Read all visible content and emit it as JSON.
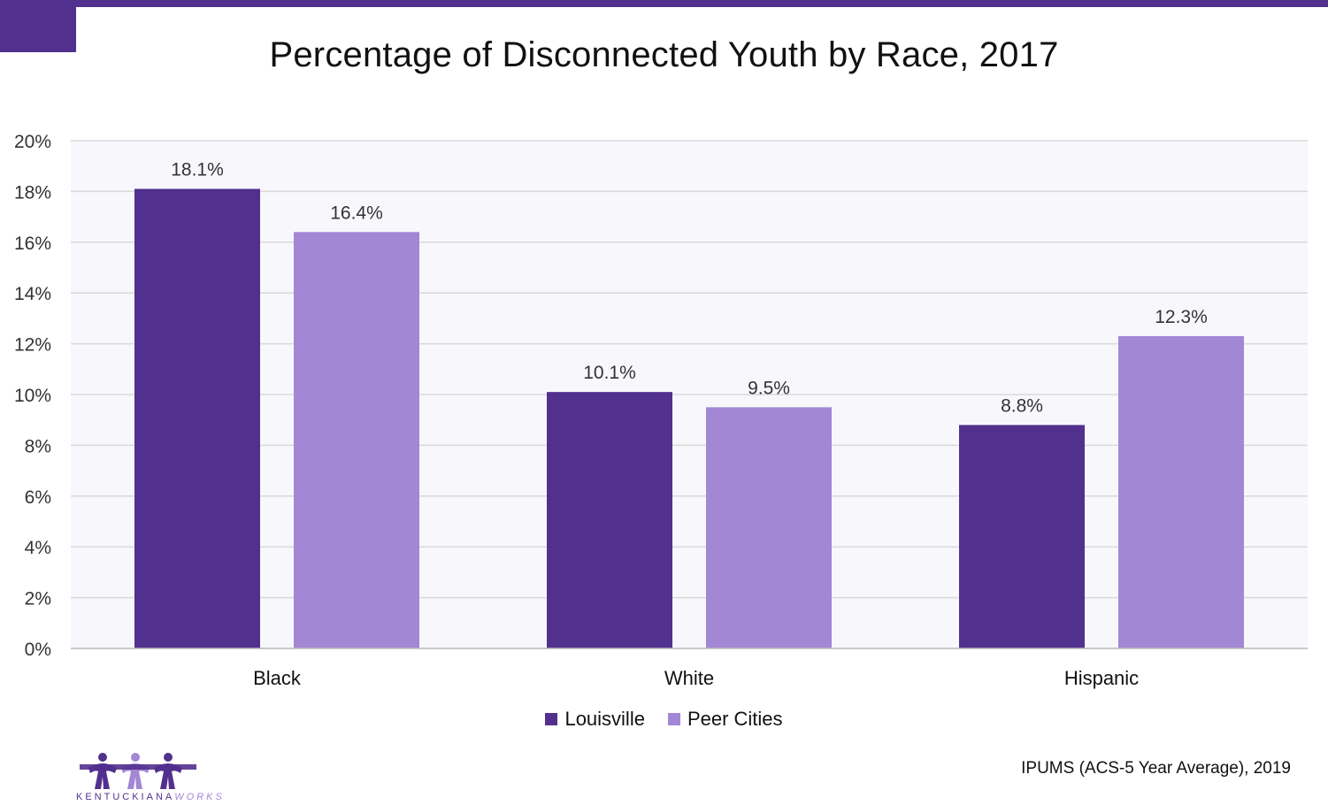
{
  "colors": {
    "accent": "#52308e",
    "louisville": "#52308e",
    "peer_cities": "#a287d5",
    "plot_background": "#f8f7fc",
    "grid": "#d9d9d9"
  },
  "logo": {
    "name_part1": "KENTUCKIANA",
    "name_part2": "WORKS"
  },
  "source": "IPUMS (ACS-5 Year Average), 2019",
  "chart_data": {
    "type": "bar",
    "title": "Percentage of Disconnected Youth by Race, 2017",
    "xlabel": "",
    "ylabel": "",
    "categories": [
      "Black",
      "White",
      "Hispanic"
    ],
    "series": [
      {
        "name": "Louisville",
        "values": [
          18.1,
          10.1,
          8.8
        ],
        "labels": [
          "18.1%",
          "10.1%",
          "8.8%"
        ]
      },
      {
        "name": "Peer Cities",
        "values": [
          16.4,
          9.5,
          12.3
        ],
        "labels": [
          "16.4%",
          "9.5%",
          "12.3%"
        ]
      }
    ],
    "ylim": [
      0,
      20
    ],
    "yticks": [
      "0%",
      "2%",
      "4%",
      "6%",
      "8%",
      "10%",
      "12%",
      "14%",
      "16%",
      "18%",
      "20%"
    ],
    "grid": true,
    "legend_position": "bottom"
  }
}
